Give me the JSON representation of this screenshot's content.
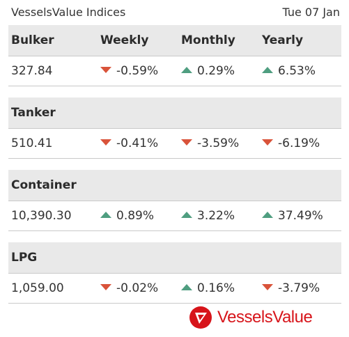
{
  "header": {
    "title": "VesselsValue Indices",
    "date": "Tue 07 Jan"
  },
  "columns": {
    "weekly": "Weekly",
    "monthly": "Monthly",
    "yearly": "Yearly"
  },
  "sections": [
    {
      "name": "Bulker",
      "value": "327.84",
      "weekly": {
        "text": "-0.59%",
        "dir": "down"
      },
      "monthly": {
        "text": "0.29%",
        "dir": "up"
      },
      "yearly": {
        "text": "6.53%",
        "dir": "up"
      }
    },
    {
      "name": "Tanker",
      "value": "510.41",
      "weekly": {
        "text": "-0.41%",
        "dir": "down"
      },
      "monthly": {
        "text": "-3.59%",
        "dir": "down"
      },
      "yearly": {
        "text": "-6.19%",
        "dir": "down"
      }
    },
    {
      "name": "Container",
      "value": "10,390.30",
      "weekly": {
        "text": "0.89%",
        "dir": "up"
      },
      "monthly": {
        "text": "3.22%",
        "dir": "up"
      },
      "yearly": {
        "text": "37.49%",
        "dir": "up"
      }
    },
    {
      "name": "LPG",
      "value": "1,059.00",
      "weekly": {
        "text": "-0.02%",
        "dir": "down"
      },
      "monthly": {
        "text": "0.16%",
        "dir": "up"
      },
      "yearly": {
        "text": "-3.79%",
        "dir": "down"
      }
    }
  ],
  "logo": {
    "text": "VesselsValue",
    "icon": "vesselsvalue-logo-icon"
  },
  "colors": {
    "up": "#4f9e80",
    "down": "#d9533a",
    "brand": "#d7141a",
    "header_bg": "#e9e9e9"
  }
}
